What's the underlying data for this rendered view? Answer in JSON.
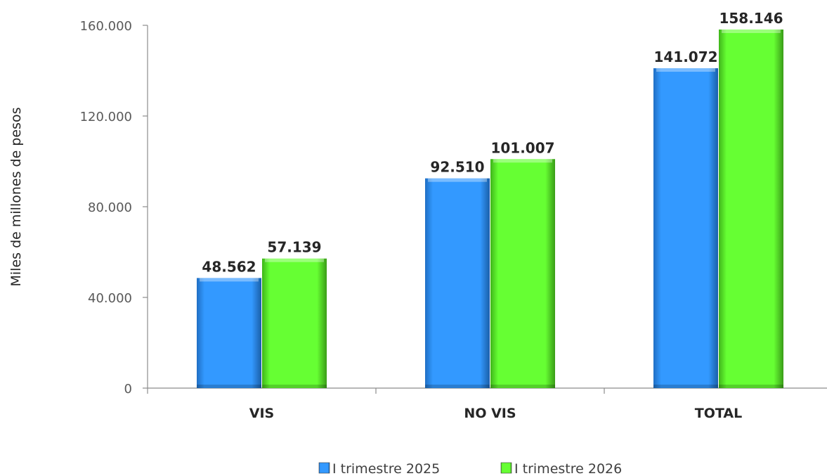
{
  "chart_data": {
    "type": "bar",
    "title": "",
    "xlabel": "",
    "ylabel": "Miles de  millones de pesos",
    "categories": [
      "VIS",
      "NO VIS",
      "TOTAL"
    ],
    "series": [
      {
        "name": "I trimestre 2025",
        "values": [
          48562,
          92510,
          141072
        ],
        "labels": [
          "48.562",
          "92.510",
          "141.072"
        ],
        "color": "#3399ff"
      },
      {
        "name": "I trimestre 2026",
        "values": [
          57139,
          101007,
          158146
        ],
        "labels": [
          "57.139",
          "101.007",
          "158.146"
        ],
        "color": "#66ff33"
      }
    ],
    "ylim": [
      0,
      160000
    ],
    "yticks": [
      0,
      40000,
      80000,
      120000,
      160000
    ],
    "ytick_labels": [
      "0",
      "40.000",
      "80.000",
      "120.000",
      "160.000"
    ],
    "grid": false,
    "legend_position": "bottom"
  }
}
